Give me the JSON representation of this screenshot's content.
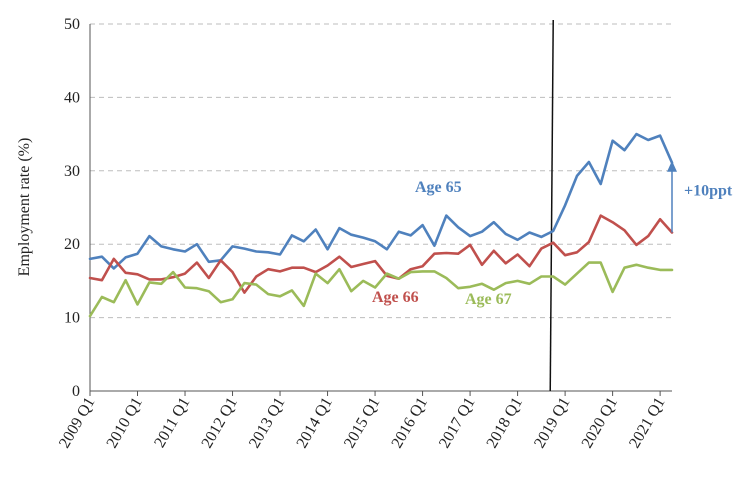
{
  "chart_data": {
    "type": "line",
    "title": "",
    "xlabel": "",
    "ylabel": "Employment rate (%)",
    "ylim": [
      0,
      50
    ],
    "yticks": [
      "0",
      "10",
      "20",
      "30",
      "40",
      "50"
    ],
    "grid": "horizontal dashed",
    "x": [
      "2009 Q1",
      "2009 Q2",
      "2009 Q3",
      "2009 Q4",
      "2010 Q1",
      "2010 Q2",
      "2010 Q3",
      "2010 Q4",
      "2011 Q1",
      "2011 Q2",
      "2011 Q3",
      "2011 Q4",
      "2012 Q1",
      "2012 Q2",
      "2012 Q3",
      "2012 Q4",
      "2013 Q1",
      "2013 Q2",
      "2013 Q3",
      "2013 Q4",
      "2014 Q1",
      "2014 Q2",
      "2014 Q3",
      "2014 Q4",
      "2015 Q1",
      "2015 Q2",
      "2015 Q3",
      "2015 Q4",
      "2016 Q1",
      "2016 Q2",
      "2016 Q3",
      "2016 Q4",
      "2017 Q1",
      "2017 Q2",
      "2017 Q3",
      "2017 Q4",
      "2018 Q1",
      "2018 Q2",
      "2018 Q3",
      "2018 Q4",
      "2019 Q1",
      "2019 Q2",
      "2019 Q3",
      "2019 Q4",
      "2020 Q1",
      "2020 Q2",
      "2020 Q3",
      "2020 Q4",
      "2021 Q1",
      "2021 Q2"
    ],
    "xtick_labels": [
      "2009 Q1",
      "2010 Q1",
      "2011 Q1",
      "2012 Q1",
      "2013 Q1",
      "2014 Q1",
      "2015 Q1",
      "2016 Q1",
      "2017 Q1",
      "2018 Q1",
      "2019 Q1",
      "2020 Q1",
      "2021 Q1"
    ],
    "series": [
      {
        "name": "Age 65",
        "color": "#4f81bd",
        "values": [
          18.0,
          18.3,
          16.7,
          18.2,
          18.7,
          21.1,
          19.7,
          19.3,
          19.0,
          20.0,
          17.6,
          17.8,
          19.7,
          19.4,
          19.0,
          18.9,
          18.6,
          21.2,
          20.4,
          22.0,
          19.3,
          22.2,
          21.3,
          20.9,
          20.4,
          19.3,
          21.7,
          21.2,
          22.6,
          19.8,
          23.9,
          22.3,
          21.1,
          21.7,
          23.0,
          21.4,
          20.6,
          21.6,
          21.0,
          21.8,
          25.3,
          29.3,
          31.2,
          28.2,
          34.1,
          32.8,
          35.0,
          34.2,
          34.8,
          31.1
        ]
      },
      {
        "name": "Age 66",
        "color": "#c0504d",
        "values": [
          15.4,
          15.1,
          18.0,
          16.1,
          15.9,
          15.2,
          15.2,
          15.5,
          16.0,
          17.5,
          15.4,
          17.8,
          16.2,
          13.4,
          15.6,
          16.6,
          16.3,
          16.8,
          16.8,
          16.2,
          17.1,
          18.3,
          16.9,
          17.3,
          17.7,
          15.7,
          15.3,
          16.6,
          17.0,
          18.7,
          18.8,
          18.7,
          19.9,
          17.2,
          19.1,
          17.4,
          18.6,
          17.0,
          19.4,
          20.2,
          18.5,
          18.9,
          20.3,
          23.9,
          23.0,
          21.9,
          19.9,
          21.1,
          23.4,
          21.6
        ]
      },
      {
        "name": "Age 67",
        "color": "#9bbb59",
        "values": [
          10.2,
          12.8,
          12.1,
          15.1,
          11.8,
          14.8,
          14.6,
          16.2,
          14.1,
          14.0,
          13.6,
          12.1,
          12.5,
          14.7,
          14.5,
          13.2,
          12.9,
          13.7,
          11.6,
          16.0,
          14.7,
          16.6,
          13.6,
          15.0,
          14.1,
          16.0,
          15.3,
          16.2,
          16.3,
          16.3,
          15.4,
          14.0,
          14.2,
          14.6,
          13.8,
          14.7,
          15.0,
          14.6,
          15.6,
          15.6,
          14.5,
          16.0,
          17.5,
          17.5,
          13.5,
          16.8,
          17.2,
          16.8,
          16.5,
          16.5
        ]
      }
    ],
    "series_labels": [
      "Age 65",
      "Age 66",
      "Age 67"
    ],
    "vertical_marker_x": "2018 Q4",
    "annotation": {
      "text": "+10ppt",
      "from_y": 21.6,
      "to_y": 31.1,
      "color": "#4f81bd"
    }
  }
}
